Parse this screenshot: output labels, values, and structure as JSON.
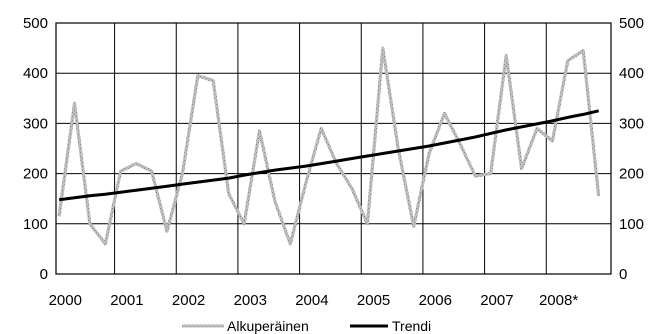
{
  "chart_data": {
    "type": "line",
    "title": "",
    "xlabel": "",
    "ylabel": "",
    "ylim": [
      0,
      500
    ],
    "y_ticks": [
      0,
      100,
      200,
      300,
      400,
      500
    ],
    "y_ticks_right": [
      0,
      100,
      200,
      300,
      400,
      500
    ],
    "x_tick_labels": [
      "2000",
      "2001",
      "2002",
      "2003",
      "2004",
      "2005",
      "2006",
      "2007",
      "2008*"
    ],
    "grid": "both",
    "legend": "bottom",
    "series": [
      {
        "name": "Alkuperäinen",
        "color": "#a6a6a6",
        "style": "textured-gray",
        "x": [
          2000.0,
          2000.25,
          2000.5,
          2000.75,
          2001.0,
          2001.25,
          2001.5,
          2001.75,
          2002.0,
          2002.25,
          2002.5,
          2002.75,
          2003.0,
          2003.25,
          2003.5,
          2003.75,
          2004.0,
          2004.25,
          2004.5,
          2004.75,
          2005.0,
          2005.25,
          2005.5,
          2005.75,
          2006.0,
          2006.25,
          2006.5,
          2006.75,
          2007.0,
          2007.25,
          2007.5,
          2007.75,
          2008.0,
          2008.25,
          2008.5,
          2008.75
        ],
        "values": [
          115,
          340,
          100,
          60,
          205,
          220,
          205,
          85,
          200,
          395,
          385,
          160,
          100,
          285,
          145,
          60,
          180,
          290,
          220,
          170,
          100,
          450,
          250,
          95,
          240,
          320,
          260,
          195,
          200,
          435,
          210,
          290,
          265,
          425,
          445,
          155
        ]
      },
      {
        "name": "Trendi",
        "color": "#000000",
        "style": "solid",
        "x": [
          2000.0,
          2000.25,
          2000.5,
          2000.75,
          2001.0,
          2001.25,
          2001.5,
          2001.75,
          2002.0,
          2002.25,
          2002.5,
          2002.75,
          2003.0,
          2003.25,
          2003.5,
          2003.75,
          2004.0,
          2004.25,
          2004.5,
          2004.75,
          2005.0,
          2005.25,
          2005.5,
          2005.75,
          2006.0,
          2006.25,
          2006.5,
          2006.75,
          2007.0,
          2007.25,
          2007.5,
          2007.75,
          2008.0,
          2008.25,
          2008.5,
          2008.75
        ],
        "values": [
          148,
          152,
          156,
          159,
          163,
          167,
          171,
          175,
          179,
          183,
          187,
          191,
          197,
          202,
          207,
          211,
          215,
          220,
          225,
          230,
          235,
          240,
          245,
          250,
          255,
          261,
          267,
          273,
          280,
          287,
          293,
          299,
          305,
          312,
          318,
          325
        ]
      }
    ]
  }
}
